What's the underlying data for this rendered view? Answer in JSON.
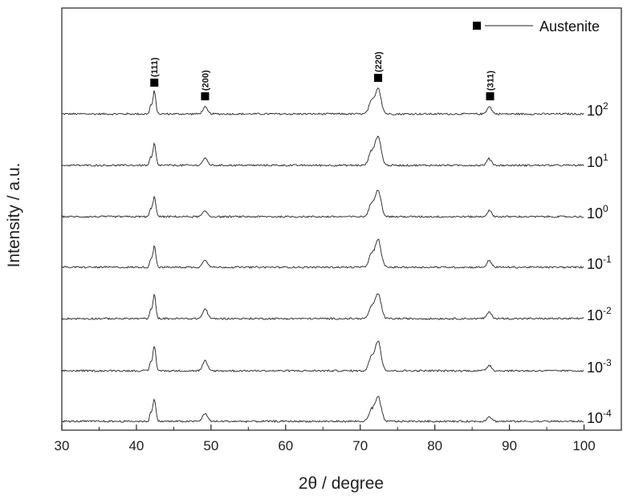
{
  "chart_data": {
    "type": "line",
    "xlabel": "2θ / degree",
    "ylabel": "Intensity / a.u.",
    "xlim": [
      30,
      105
    ],
    "x_ticks": [
      30,
      40,
      50,
      60,
      70,
      80,
      90,
      100
    ],
    "legend": {
      "label": "Austenite",
      "marker": "square",
      "placement": "top-right"
    },
    "peaks": [
      {
        "label": "(111)",
        "x": 42.4
      },
      {
        "label": "(200)",
        "x": 49.2
      },
      {
        "label": "(220)",
        "x": 72.4
      },
      {
        "label": "(311)",
        "x": 87.3
      }
    ],
    "series": [
      {
        "name": "10",
        "exponent": "2",
        "peak_heights": [
          28,
          8,
          32,
          9
        ]
      },
      {
        "name": "10",
        "exponent": "1",
        "peak_heights": [
          27,
          9,
          36,
          8
        ]
      },
      {
        "name": "10",
        "exponent": "0",
        "peak_heights": [
          26,
          7,
          33,
          7
        ]
      },
      {
        "name": "10",
        "exponent": "-1",
        "peak_heights": [
          27,
          10,
          34,
          8
        ]
      },
      {
        "name": "10",
        "exponent": "-2",
        "peak_heights": [
          29,
          12,
          31,
          8
        ]
      },
      {
        "name": "10",
        "exponent": "-3",
        "peak_heights": [
          31,
          12,
          37,
          7
        ]
      },
      {
        "name": "10",
        "exponent": "-4",
        "peak_heights": [
          28,
          10,
          30,
          6
        ]
      }
    ]
  }
}
